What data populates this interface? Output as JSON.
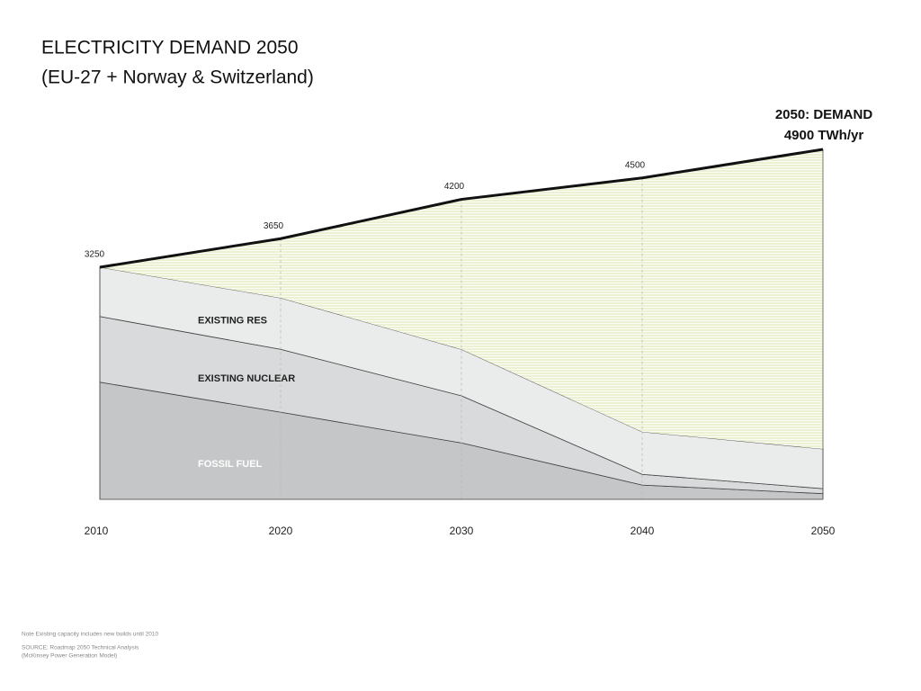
{
  "chart_data": {
    "type": "stacked-area",
    "title": "ELECTRICITY DEMAND 2050",
    "subtitle": "(EU-27 + Norway & Switzerland)",
    "x": [
      2010,
      2020,
      2030,
      2040,
      2050
    ],
    "series": [
      {
        "name": "FOSSIL FUEL",
        "color": "#c4c6c7",
        "values": [
          1640,
          1220,
          790,
          200,
          80
        ]
      },
      {
        "name": "EXISTING NUCLEAR",
        "color": "#d8dadb",
        "values": [
          920,
          880,
          660,
          150,
          70
        ]
      },
      {
        "name": "EXISTING RES",
        "color": "#e9eceb",
        "values": [
          690,
          720,
          650,
          595,
          555
        ]
      }
    ],
    "demand": {
      "color": "#111111",
      "values": [
        3250,
        3650,
        4200,
        4500,
        4900
      ]
    },
    "annotation": [
      "2050: DEMAND",
      "4900 TWh/yr"
    ],
    "notes": [
      "Note Existing capacity includes new builds until 2010",
      "SOURCE: Roadmap 2050 Technical Analysis",
      "(McKinsey Power Generation Model)"
    ]
  }
}
